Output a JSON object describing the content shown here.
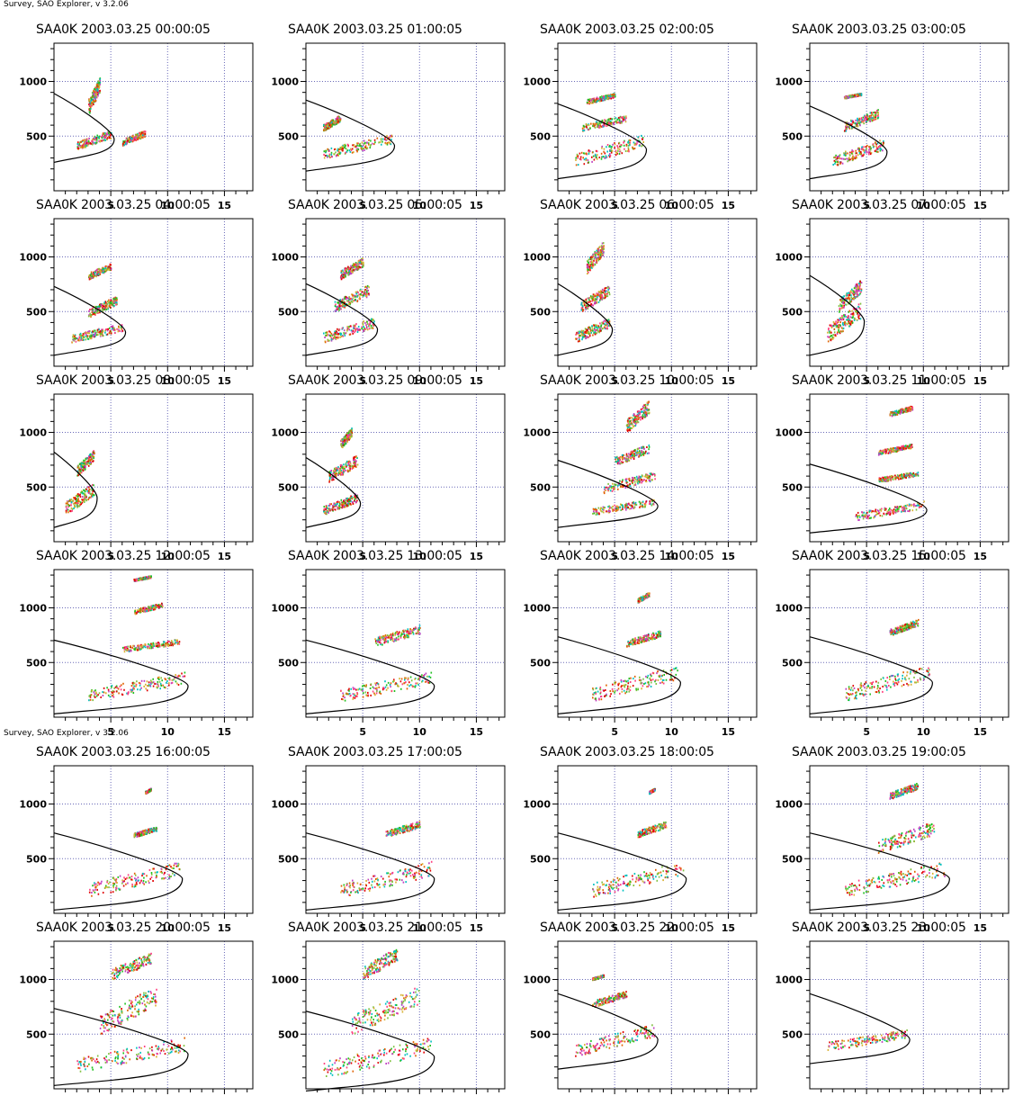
{
  "header_text": "Survey, SAO Explorer, v 3.2.06",
  "colors": {
    "trace": "#000000",
    "grid": "#6a6ab8",
    "echoes": [
      "#e00000",
      "#20c020",
      "#ff4080",
      "#d8b030",
      "#e06000",
      "#80c040",
      "#00c0c0",
      "#c040c0"
    ]
  },
  "chart_data": [
    {
      "type": "scatter",
      "title": "SAA0K 2003.03.25 00:00:05",
      "xlim": [
        0,
        17.5
      ],
      "ylim": [
        0,
        1350
      ],
      "xticks": [
        5,
        10,
        15
      ],
      "yticks": [
        500,
        1000
      ],
      "grid": true,
      "clusters": [
        [
          2,
          5,
          380,
          560
        ],
        [
          3,
          4,
          700,
          1050
        ],
        [
          6,
          8,
          420,
          560
        ]
      ]
    },
    {
      "type": "scatter",
      "title": "SAA0K 2003.03.25 01:00:05",
      "xlim": [
        0,
        17.5
      ],
      "ylim": [
        0,
        1350
      ],
      "xticks": [
        5,
        10,
        15
      ],
      "yticks": [
        500,
        1000
      ],
      "grid": true,
      "clusters": [
        [
          1.5,
          7.5,
          300,
          520
        ],
        [
          1.5,
          3,
          550,
          700
        ]
      ]
    },
    {
      "type": "scatter",
      "title": "SAA0K 2003.03.25 02:00:05",
      "xlim": [
        0,
        17.5
      ],
      "ylim": [
        0,
        1350
      ],
      "xticks": [
        5,
        10,
        15
      ],
      "yticks": [
        500,
        1000
      ],
      "grid": true,
      "clusters": [
        [
          1.5,
          7.5,
          230,
          520
        ],
        [
          2,
          6,
          550,
          700
        ],
        [
          2.5,
          5,
          800,
          900
        ]
      ]
    },
    {
      "type": "scatter",
      "title": "SAA0K 2003.03.25 03:00:05",
      "xlim": [
        0,
        17.5
      ],
      "ylim": [
        0,
        1350
      ],
      "xticks": [
        5,
        10,
        15
      ],
      "yticks": [
        500,
        1000
      ],
      "grid": true,
      "clusters": [
        [
          2,
          6.5,
          230,
          480
        ],
        [
          3,
          6,
          550,
          750
        ],
        [
          3,
          4.5,
          850,
          900
        ]
      ]
    },
    {
      "type": "scatter",
      "title": "SAA0K 2003.03.25 04:00:05",
      "xlim": [
        0,
        17.5
      ],
      "ylim": [
        0,
        1350
      ],
      "xticks": [
        5,
        10,
        15
      ],
      "yticks": [
        500,
        1000
      ],
      "grid": true,
      "clusters": [
        [
          1.5,
          6,
          220,
          400
        ],
        [
          3,
          5.5,
          450,
          650
        ],
        [
          3,
          5,
          800,
          950
        ]
      ]
    },
    {
      "type": "scatter",
      "title": "SAA0K 2003.03.25 05:00:05",
      "xlim": [
        0,
        17.5
      ],
      "ylim": [
        0,
        1350
      ],
      "xticks": [
        5,
        10,
        15
      ],
      "yticks": [
        500,
        1000
      ],
      "grid": true,
      "clusters": [
        [
          1.5,
          6,
          220,
          450
        ],
        [
          2.5,
          5.5,
          500,
          750
        ],
        [
          3,
          5,
          800,
          1000
        ]
      ]
    },
    {
      "type": "scatter",
      "title": "SAA0K 2003.03.25 06:00:05",
      "xlim": [
        0,
        17.5
      ],
      "ylim": [
        0,
        1350
      ],
      "xticks": [
        5,
        10,
        15
      ],
      "yticks": [
        500,
        1000
      ],
      "grid": true,
      "clusters": [
        [
          1.5,
          4.5,
          220,
          450
        ],
        [
          2,
          4.5,
          500,
          750
        ],
        [
          2.5,
          4,
          850,
          1150
        ]
      ]
    },
    {
      "type": "scatter",
      "title": "SAA0K 2003.03.25 07:00:05",
      "xlim": [
        0,
        17.5
      ],
      "ylim": [
        0,
        1350
      ],
      "xticks": [
        5,
        10,
        15
      ],
      "yticks": [
        500,
        1000
      ],
      "grid": true,
      "clusters": [
        [
          1.5,
          4.5,
          220,
          600
        ],
        [
          2.5,
          4.5,
          500,
          800
        ]
      ]
    },
    {
      "type": "scatter",
      "title": "SAA0K 2003.03.25 08:00:05",
      "xlim": [
        0,
        17.5
      ],
      "ylim": [
        0,
        1350
      ],
      "xticks": [
        5,
        10,
        15
      ],
      "yticks": [
        500,
        1000
      ],
      "grid": true,
      "clusters": [
        [
          1,
          3.5,
          250,
          550
        ],
        [
          2,
          3.5,
          600,
          850
        ]
      ]
    },
    {
      "type": "scatter",
      "title": "SAA0K 2003.03.25 09:00:05",
      "xlim": [
        0,
        17.5
      ],
      "ylim": [
        0,
        1350
      ],
      "xticks": [
        5,
        10,
        15
      ],
      "yticks": [
        500,
        1000
      ],
      "grid": true,
      "clusters": [
        [
          1.5,
          4.5,
          250,
          450
        ],
        [
          2,
          4.5,
          550,
          800
        ],
        [
          3,
          4,
          850,
          1050
        ]
      ]
    },
    {
      "type": "scatter",
      "title": "SAA0K 2003.03.25 10:00:05",
      "xlim": [
        0,
        17.5
      ],
      "ylim": [
        0,
        1350
      ],
      "xticks": [
        5,
        10,
        15
      ],
      "yticks": [
        500,
        1000
      ],
      "grid": true,
      "clusters": [
        [
          3,
          8.5,
          250,
          400
        ],
        [
          4,
          8.5,
          450,
          650
        ],
        [
          5,
          8,
          700,
          900
        ],
        [
          6,
          8,
          1000,
          1300
        ]
      ]
    },
    {
      "type": "scatter",
      "title": "SAA0K 2003.03.25 11:00:05",
      "xlim": [
        0,
        17.5
      ],
      "ylim": [
        0,
        1350
      ],
      "xticks": [
        5,
        10,
        15
      ],
      "yticks": [
        500,
        1000
      ],
      "grid": true,
      "clusters": [
        [
          4,
          10,
          200,
          380
        ],
        [
          6,
          9.5,
          550,
          650
        ],
        [
          6,
          9,
          800,
          900
        ],
        [
          7,
          9,
          1150,
          1250
        ]
      ]
    },
    {
      "type": "scatter",
      "title": "SAA0K 2003.03.25 12:00:05",
      "xlim": [
        0,
        17.5
      ],
      "ylim": [
        0,
        1350
      ],
      "xticks": [
        5,
        10,
        15
      ],
      "yticks": [
        500,
        1000
      ],
      "grid": true,
      "clusters": [
        [
          3,
          11.5,
          150,
          420
        ],
        [
          6,
          11,
          600,
          720
        ],
        [
          7,
          9.5,
          950,
          1050
        ],
        [
          7,
          8.5,
          1250,
          1300
        ]
      ]
    },
    {
      "type": "scatter",
      "title": "SAA0K 2003.03.25 13:00:05",
      "xlim": [
        0,
        17.5
      ],
      "ylim": [
        0,
        1350
      ],
      "xticks": [
        5,
        10,
        15
      ],
      "yticks": [
        500,
        1000
      ],
      "grid": true,
      "clusters": [
        [
          3,
          11,
          150,
          420
        ],
        [
          6,
          10,
          650,
          850
        ]
      ]
    },
    {
      "type": "scatter",
      "title": "SAA0K 2003.03.25 14:00:05",
      "xlim": [
        0,
        17.5
      ],
      "ylim": [
        0,
        1350
      ],
      "xticks": [
        5,
        10,
        15
      ],
      "yticks": [
        500,
        1000
      ],
      "grid": true,
      "clusters": [
        [
          3,
          10.5,
          150,
          480
        ],
        [
          6,
          9,
          650,
          800
        ],
        [
          7,
          8,
          1050,
          1150
        ]
      ]
    },
    {
      "type": "scatter",
      "title": "SAA0K 2003.03.25 15:00:05",
      "xlim": [
        0,
        17.5
      ],
      "ylim": [
        0,
        1350
      ],
      "xticks": [
        5,
        10,
        15
      ],
      "yticks": [
        500,
        1000
      ],
      "grid": true,
      "clusters": [
        [
          3,
          10.5,
          150,
          480
        ],
        [
          7,
          9.5,
          750,
          900
        ]
      ]
    },
    {
      "type": "scatter",
      "title": "SAA0K 2003.03.25 16:00:05",
      "xlim": [
        0,
        17.5
      ],
      "ylim": [
        0,
        1350
      ],
      "xticks": [
        5,
        10,
        15
      ],
      "yticks": [
        500,
        1000
      ],
      "grid": true,
      "clusters": [
        [
          3,
          11,
          150,
          480
        ],
        [
          7,
          9,
          700,
          800
        ],
        [
          8,
          8.5,
          1100,
          1150
        ]
      ]
    },
    {
      "type": "scatter",
      "title": "SAA0K 2003.03.25 17:00:05",
      "xlim": [
        0,
        17.5
      ],
      "ylim": [
        0,
        1350
      ],
      "xticks": [
        5,
        10,
        15
      ],
      "yticks": [
        500,
        1000
      ],
      "grid": true,
      "clusters": [
        [
          3,
          11,
          150,
          480
        ],
        [
          7,
          10,
          700,
          850
        ]
      ]
    },
    {
      "type": "scatter",
      "title": "SAA0K 2003.03.25 18:00:05",
      "xlim": [
        0,
        17.5
      ],
      "ylim": [
        0,
        1350
      ],
      "xticks": [
        5,
        10,
        15
      ],
      "yticks": [
        500,
        1000
      ],
      "grid": true,
      "clusters": [
        [
          3,
          11,
          150,
          480
        ],
        [
          7,
          9.5,
          700,
          850
        ],
        [
          8,
          8.5,
          1100,
          1150
        ]
      ]
    },
    {
      "type": "scatter",
      "title": "SAA0K 2003.03.25 19:00:05",
      "xlim": [
        0,
        17.5
      ],
      "ylim": [
        0,
        1350
      ],
      "xticks": [
        5,
        10,
        15
      ],
      "yticks": [
        500,
        1000
      ],
      "grid": true,
      "clusters": [
        [
          3,
          12,
          150,
          480
        ],
        [
          6,
          11,
          550,
          850
        ],
        [
          7,
          9.5,
          1050,
          1200
        ]
      ]
    },
    {
      "type": "scatter",
      "title": "SAA0K 2003.03.25 20:00:05",
      "xlim": [
        0,
        17.5
      ],
      "ylim": [
        0,
        1350
      ],
      "xticks": [
        5,
        10,
        15
      ],
      "yticks": [
        500,
        1000
      ],
      "grid": true,
      "clusters": [
        [
          2,
          11.5,
          150,
          480
        ],
        [
          4,
          9,
          500,
          950
        ],
        [
          5,
          8.5,
          1000,
          1250
        ]
      ]
    },
    {
      "type": "scatter",
      "title": "SAA0K 2003.03.25 21:00:05",
      "xlim": [
        0,
        17.5
      ],
      "ylim": [
        0,
        1350
      ],
      "xticks": [
        5,
        10,
        15
      ],
      "yticks": [
        500,
        1000
      ],
      "grid": true,
      "clusters": [
        [
          1.5,
          11,
          100,
          480
        ],
        [
          4,
          10,
          500,
          950
        ],
        [
          5,
          8,
          1000,
          1300
        ]
      ]
    },
    {
      "type": "scatter",
      "title": "SAA0K 2003.03.25 22:00:05",
      "xlim": [
        0,
        17.5
      ],
      "ylim": [
        0,
        1350
      ],
      "xticks": [
        5,
        10,
        15
      ],
      "yticks": [
        500,
        1000
      ],
      "grid": true,
      "clusters": [
        [
          1.5,
          8.5,
          300,
          600
        ],
        [
          3,
          6,
          750,
          900
        ],
        [
          3,
          4,
          1000,
          1050
        ]
      ]
    },
    {
      "type": "scatter",
      "title": "SAA0K 2003.03.25 23:00:05",
      "xlim": [
        0,
        17.5
      ],
      "ylim": [
        0,
        1350
      ],
      "xticks": [
        5,
        10,
        15
      ],
      "yticks": [
        500,
        1000
      ],
      "grid": true,
      "clusters": [
        [
          1.5,
          8.5,
          350,
          550
        ]
      ]
    }
  ]
}
